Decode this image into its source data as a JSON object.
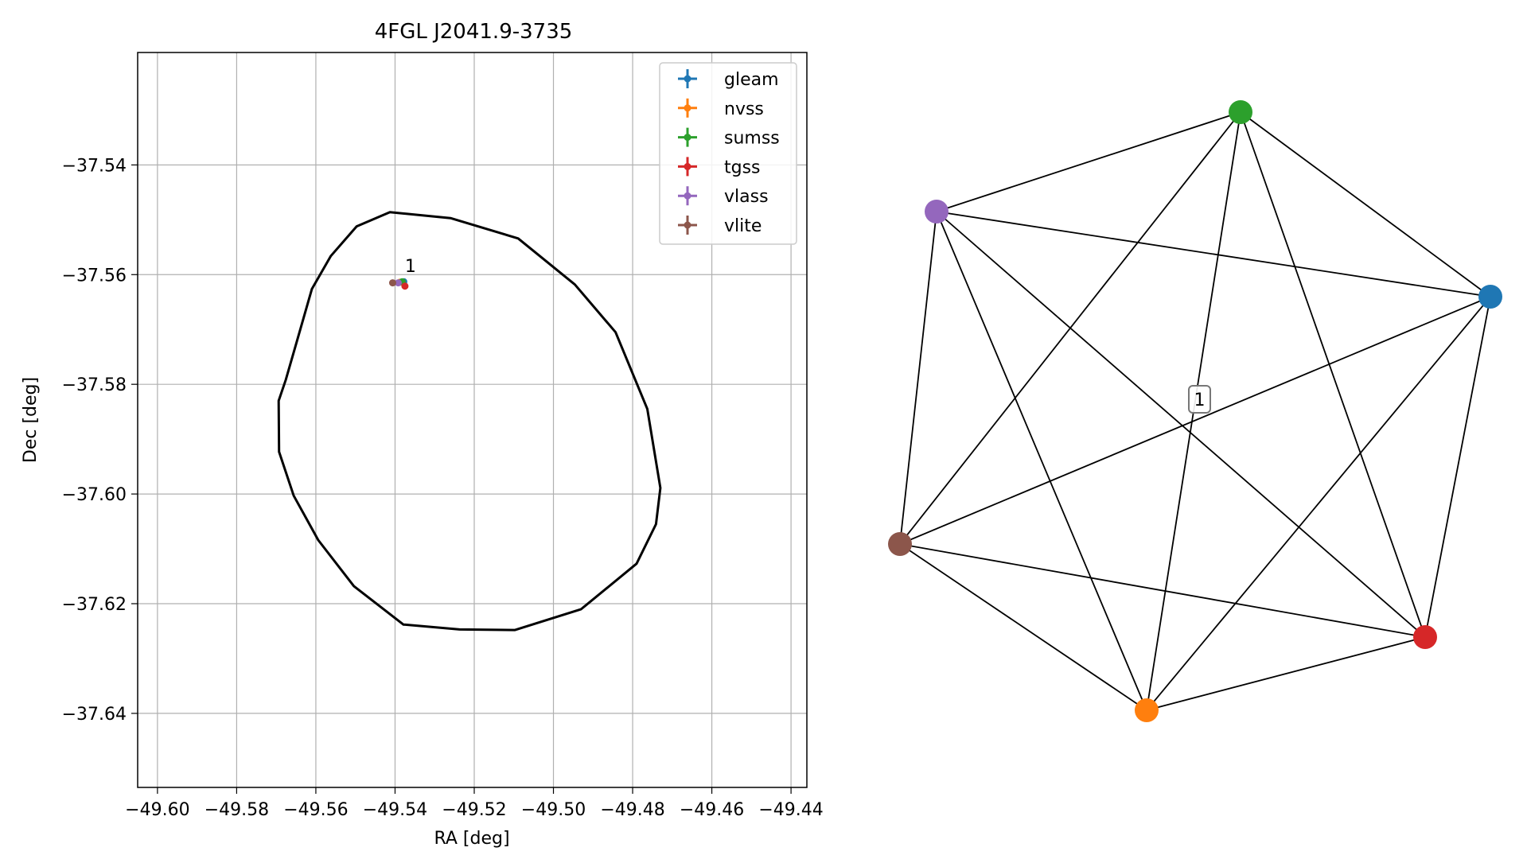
{
  "chart_data": [
    {
      "type": "scatter",
      "title": "4FGL J2041.9-3735",
      "xlabel": "RA [deg]",
      "ylabel": "Dec [deg]",
      "xlim": [
        -49.605,
        -49.436
      ],
      "ylim": [
        -37.6535,
        -37.5195
      ],
      "xticks": [
        "−49.60",
        "−49.58",
        "−49.56",
        "−49.54",
        "−49.52",
        "−49.50",
        "−49.48",
        "−49.46",
        "−49.44"
      ],
      "xtick_values": [
        -49.6,
        -49.58,
        -49.56,
        -49.54,
        -49.52,
        -49.5,
        -49.48,
        -49.46,
        -49.44
      ],
      "yticks": [
        "−37.54",
        "−37.56",
        "−37.58",
        "−37.60",
        "−37.62",
        "−37.64"
      ],
      "ytick_values": [
        -37.54,
        -37.56,
        -37.58,
        -37.6,
        -37.62,
        -37.64
      ],
      "grid": true,
      "legend_position": "top-right",
      "series": [
        {
          "name": "gleam",
          "color": "#1f77b4",
          "x": -49.5378,
          "y": -37.5613
        },
        {
          "name": "nvss",
          "color": "#ff7f0e",
          "x": -49.5388,
          "y": -37.5614
        },
        {
          "name": "sumss",
          "color": "#2ca02c",
          "x": -49.5382,
          "y": -37.5613
        },
        {
          "name": "tgss",
          "color": "#d62728",
          "x": -49.5375,
          "y": -37.5621
        },
        {
          "name": "vlass",
          "color": "#9467bd",
          "x": -49.5392,
          "y": -37.5615
        },
        {
          "name": "vlite",
          "color": "#8c564b",
          "x": -49.5406,
          "y": -37.5615
        }
      ],
      "annotations": [
        {
          "text": "1",
          "x": -49.5375,
          "y": -37.5595
        }
      ],
      "ellipse": {
        "center": [
          -49.5205,
          -37.5869
        ],
        "color": "#000000",
        "outline": [
          [
            -49.5497,
            -37.5512
          ],
          [
            -49.5562,
            -37.5566
          ],
          [
            -49.561,
            -37.5626
          ],
          [
            -49.5648,
            -37.5722
          ],
          [
            -49.5676,
            -37.5792
          ],
          [
            -49.5694,
            -37.583
          ],
          [
            -49.5693,
            -37.5923
          ],
          [
            -49.5656,
            -37.6003
          ],
          [
            -49.5594,
            -37.6084
          ],
          [
            -49.5504,
            -37.6168
          ],
          [
            -49.5379,
            -37.6238
          ],
          [
            -49.5237,
            -37.6247
          ],
          [
            -49.5097,
            -37.6248
          ],
          [
            -49.493,
            -37.621
          ],
          [
            -49.479,
            -37.6127
          ],
          [
            -49.4741,
            -37.6055
          ],
          [
            -49.473,
            -37.5989
          ],
          [
            -49.4763,
            -37.5845
          ],
          [
            -49.4843,
            -37.5705
          ],
          [
            -49.4946,
            -37.5618
          ],
          [
            -49.5089,
            -37.5534
          ],
          [
            -49.526,
            -37.5497
          ],
          [
            -49.5413,
            -37.5486
          ]
        ]
      }
    },
    {
      "type": "network",
      "nodes": [
        {
          "name": "gleam",
          "color": "#1f77b4"
        },
        {
          "name": "nvss",
          "color": "#ff7f0e"
        },
        {
          "name": "sumss",
          "color": "#2ca02c"
        },
        {
          "name": "tgss",
          "color": "#d62728"
        },
        {
          "name": "vlass",
          "color": "#9467bd"
        },
        {
          "name": "vlite",
          "color": "#8c564b"
        }
      ],
      "edges": "complete",
      "annotations": [
        {
          "text": "1"
        }
      ]
    }
  ]
}
